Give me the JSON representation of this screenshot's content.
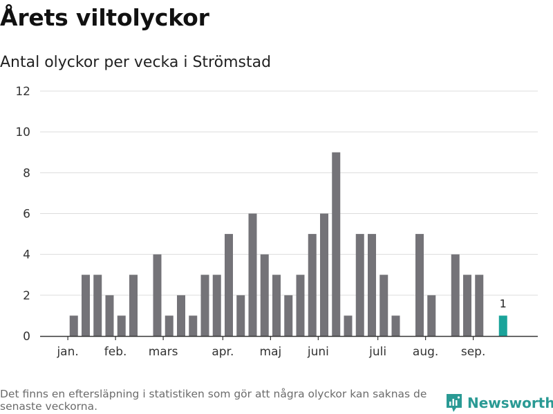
{
  "header": {
    "title": "Årets viltolyckor",
    "subtitle": "Antal olyckor per vecka i Strömstad"
  },
  "footer": {
    "note": "Det finns en eftersläpning i statistiken som gör att några olyckor kan saknas de senaste veckorna.",
    "brand": "Newsworthy"
  },
  "colors": {
    "bar": "#747378",
    "highlight": "#1aa39a",
    "grid": "#dcdcdc",
    "axis": "#333333"
  },
  "chart_data": {
    "type": "bar",
    "title": "Årets viltolyckor",
    "subtitle": "Antal olyckor per vecka i Strömstad",
    "ylim": [
      0,
      12
    ],
    "yticks": [
      0,
      2,
      4,
      6,
      8,
      10,
      12
    ],
    "grid": true,
    "values": [
      0,
      1,
      3,
      3,
      2,
      1,
      3,
      0,
      4,
      1,
      2,
      1,
      3,
      3,
      5,
      2,
      6,
      4,
      3,
      2,
      3,
      5,
      6,
      9,
      1,
      5,
      5,
      3,
      1,
      0,
      5,
      2,
      0,
      4,
      3,
      3,
      0,
      1
    ],
    "highlight_index": 37,
    "highlight_label": "1",
    "month_labels": [
      {
        "label": "jan.",
        "week": 0
      },
      {
        "label": "feb.",
        "week": 4
      },
      {
        "label": "mars",
        "week": 8
      },
      {
        "label": "apr.",
        "week": 13
      },
      {
        "label": "maj",
        "week": 17
      },
      {
        "label": "juni",
        "week": 21
      },
      {
        "label": "juli",
        "week": 26
      },
      {
        "label": "aug.",
        "week": 30
      },
      {
        "label": "sep.",
        "week": 34
      }
    ]
  }
}
